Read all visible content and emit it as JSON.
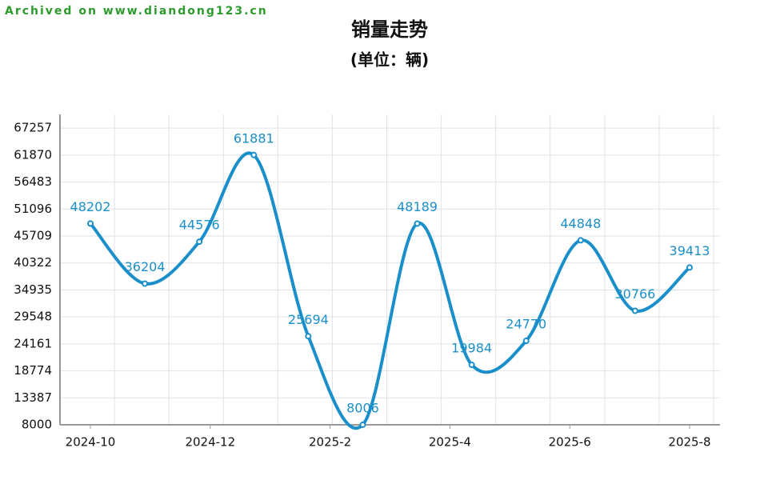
{
  "chart_data": {
    "type": "line",
    "watermark": "Archived on www.diandong123.cn",
    "title": "销量走势",
    "subtitle": "(单位：辆)",
    "xtick_labels": [
      "2024-10",
      "2024-12",
      "2025-2",
      "2025-4",
      "2025-6",
      "2025-8"
    ],
    "values": [
      48202,
      36204,
      44576,
      61881,
      25694,
      8006,
      48189,
      19984,
      24770,
      44848,
      30766,
      39413
    ],
    "color": "#1a8fc9",
    "ylim": [
      8000,
      70000
    ],
    "yticks": [
      8000,
      13387,
      18774,
      24161,
      29548,
      34935,
      40322,
      45709,
      51096,
      56483,
      61870,
      67257
    ],
    "grid": true
  }
}
